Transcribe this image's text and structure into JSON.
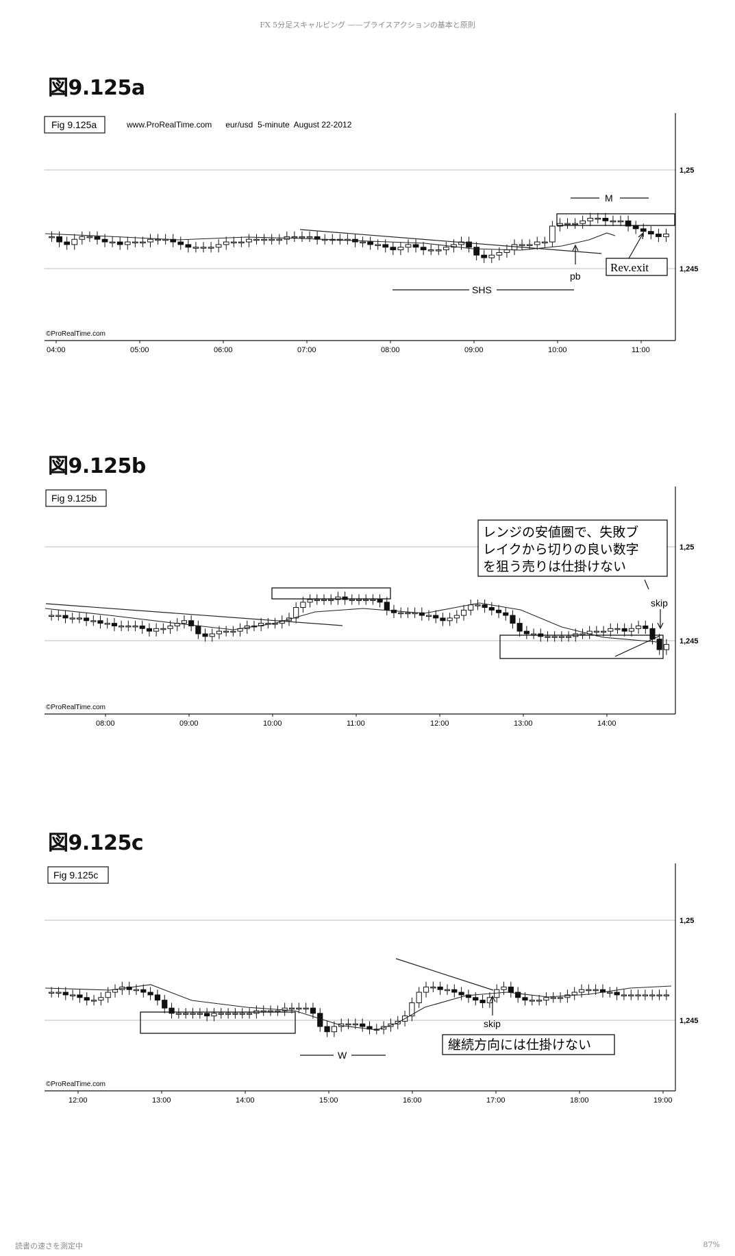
{
  "header": {
    "title": "FX 5分足スキャルピング ——プライスアクションの基本と原則"
  },
  "footer": {
    "left_text": "読書の速さを測定中",
    "right_text": "87%"
  },
  "figures": [
    {
      "heading": "図9.125a",
      "label": "Fig 9.125a",
      "info": "www.ProRealTime.com      eur/usd  5-minute  August 22-2012",
      "watermark": "©ProRealTime.com",
      "price_labels": [
        "1,25",
        "1,245"
      ],
      "time_labels": [
        "04:00",
        "05:00",
        "06:00",
        "07:00",
        "08:00",
        "09:00",
        "10:00",
        "11:00"
      ],
      "annotations": {
        "m": "M",
        "shs": "SHS",
        "pb": "pb",
        "rev_exit": "Rev.exit"
      },
      "chart_data": {
        "type": "candlestick",
        "instrument": "eur/usd",
        "timeframe": "5-minute",
        "date": "August 22-2012",
        "x_range": [
          "04:00",
          "11:30"
        ],
        "ylim": [
          1.2435,
          1.2513
        ],
        "close_series": [
          1.247,
          1.2468,
          1.2467,
          1.2469,
          1.247,
          1.247,
          1.2469,
          1.2468,
          1.2468,
          1.2467,
          1.2468,
          1.2468,
          1.2468,
          1.2469,
          1.2469,
          1.2469,
          1.2468,
          1.2467,
          1.2466,
          1.2466,
          1.2466,
          1.2466,
          1.2467,
          1.2468,
          1.2468,
          1.2468,
          1.2469,
          1.2469,
          1.2469,
          1.2469,
          1.2469,
          1.247,
          1.247,
          1.247,
          1.247,
          1.2469,
          1.2469,
          1.2469,
          1.2469,
          1.2469,
          1.2468,
          1.2468,
          1.2467,
          1.2467,
          1.2466,
          1.2465,
          1.2466,
          1.2467,
          1.2466,
          1.2465,
          1.2465,
          1.2465,
          1.2466,
          1.2467,
          1.2468,
          1.2466,
          1.2463,
          1.2462,
          1.2463,
          1.2464,
          1.2465,
          1.2467,
          1.2467,
          1.2467,
          1.2468,
          1.2468,
          1.2474,
          1.2475,
          1.2475,
          1.2475,
          1.2476,
          1.2477,
          1.2477,
          1.2476,
          1.2476,
          1.2476,
          1.2474,
          1.2473,
          1.2472,
          1.2471,
          1.247,
          1.2471
        ]
      }
    },
    {
      "heading": "図9.125b",
      "label": "Fig 9.125b",
      "watermark": "©ProRealTime.com",
      "price_labels": [
        "1,25",
        "1,245"
      ],
      "time_labels": [
        "08:00",
        "09:00",
        "10:00",
        "11:00",
        "12:00",
        "13:00",
        "14:00"
      ],
      "annotations": {
        "note_line1": "レンジの安値圏で、失敗ブ",
        "note_line2": "レイクから切りの良い数字",
        "note_line3": "を狙う売りは仕掛けない",
        "skip": "skip"
      },
      "chart_data": {
        "type": "candlestick",
        "x_range": [
          "07:25",
          "14:55"
        ],
        "ylim": [
          1.2435,
          1.2513
        ],
        "close_series": [
          1.2468,
          1.2468,
          1.2467,
          1.2467,
          1.2467,
          1.2466,
          1.2466,
          1.2465,
          1.2465,
          1.2464,
          1.2464,
          1.2464,
          1.2464,
          1.2463,
          1.2462,
          1.2463,
          1.2463,
          1.2464,
          1.2465,
          1.2466,
          1.2464,
          1.2461,
          1.246,
          1.2461,
          1.2462,
          1.2462,
          1.2462,
          1.2463,
          1.2464,
          1.2464,
          1.2465,
          1.2465,
          1.2465,
          1.2466,
          1.2467,
          1.2471,
          1.2473,
          1.2474,
          1.2474,
          1.2474,
          1.2474,
          1.2475,
          1.2474,
          1.2474,
          1.2474,
          1.2474,
          1.2474,
          1.2473,
          1.247,
          1.2469,
          1.2469,
          1.2469,
          1.2469,
          1.2468,
          1.2468,
          1.2467,
          1.2466,
          1.2467,
          1.2468,
          1.247,
          1.2472,
          1.2472,
          1.2471,
          1.247,
          1.2469,
          1.2468,
          1.2465,
          1.2462,
          1.2461,
          1.2461,
          1.246,
          1.246,
          1.246,
          1.246,
          1.246,
          1.2461,
          1.2461,
          1.2462,
          1.2462,
          1.2462,
          1.2463,
          1.2463,
          1.2462,
          1.2463,
          1.2464,
          1.2463,
          1.2459,
          1.2455,
          1.2457
        ]
      }
    },
    {
      "heading": "図9.125c",
      "label": "Fig 9.125c",
      "watermark": "©ProRealTime.com",
      "price_labels": [
        "1,25",
        "1,245"
      ],
      "time_labels": [
        "12:00",
        "13:00",
        "14:00",
        "15:00",
        "16:00",
        "17:00",
        "18:00",
        "19:00"
      ],
      "annotations": {
        "skip": "skip",
        "w": "W",
        "note": "継続方向には仕掛けない"
      },
      "chart_data": {
        "type": "candlestick",
        "x_range": [
          "11:40",
          "19:15"
        ],
        "ylim": [
          1.2435,
          1.2513
        ],
        "close_series": [
          1.2468,
          1.2468,
          1.2467,
          1.2467,
          1.2466,
          1.2465,
          1.2465,
          1.2466,
          1.2468,
          1.2469,
          1.247,
          1.2469,
          1.2469,
          1.2468,
          1.2467,
          1.2465,
          1.2462,
          1.246,
          1.246,
          1.246,
          1.246,
          1.246,
          1.2459,
          1.246,
          1.246,
          1.246,
          1.246,
          1.246,
          1.246,
          1.2461,
          1.2461,
          1.2461,
          1.2461,
          1.2462,
          1.2462,
          1.2462,
          1.2462,
          1.246,
          1.2455,
          1.2453,
          1.2455,
          1.2456,
          1.2456,
          1.2456,
          1.2455,
          1.2454,
          1.2454,
          1.2455,
          1.2456,
          1.2457,
          1.2459,
          1.2464,
          1.2468,
          1.247,
          1.247,
          1.2469,
          1.2469,
          1.2468,
          1.2467,
          1.2466,
          1.2465,
          1.2464,
          1.2466,
          1.2469,
          1.247,
          1.2468,
          1.2466,
          1.2465,
          1.2465,
          1.2465,
          1.2466,
          1.2466,
          1.2466,
          1.2467,
          1.2468,
          1.2469,
          1.2469,
          1.2469,
          1.2468,
          1.2468,
          1.2467,
          1.2467,
          1.2467,
          1.2467,
          1.2467,
          1.2467,
          1.2467,
          1.2467
        ]
      }
    }
  ]
}
